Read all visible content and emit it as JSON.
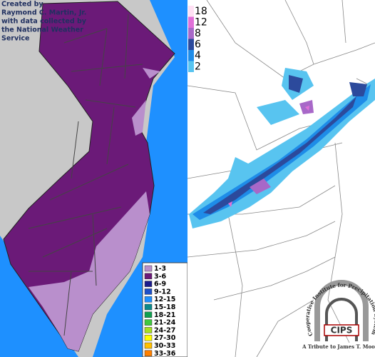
{
  "credit": {
    "lines": [
      "Created by",
      "Raymond C. Martin, Jr.",
      "with data collected by",
      "the National Weather",
      "Service"
    ]
  },
  "legend": {
    "entries": [
      {
        "label": "1-3",
        "color": "#b98fcc"
      },
      {
        "label": "3-6",
        "color": "#6b1a78"
      },
      {
        "label": "6-9",
        "color": "#1c1c8c"
      },
      {
        "label": "9-12",
        "color": "#1e50c8"
      },
      {
        "label": "12-15",
        "color": "#1e90ff"
      },
      {
        "label": "15-18",
        "color": "#0a8a8a"
      },
      {
        "label": "18-21",
        "color": "#10a050"
      },
      {
        "label": "21-24",
        "color": "#40c840"
      },
      {
        "label": "24-27",
        "color": "#a8e020"
      },
      {
        "label": "27-30",
        "color": "#ffff00"
      },
      {
        "label": "30-33",
        "color": "#ffc000"
      },
      {
        "label": "33-36",
        "color": "#ff8000"
      }
    ]
  },
  "scale": {
    "entries": [
      {
        "label": "18",
        "color": "#ffe0f4"
      },
      {
        "label": "12",
        "color": "#e070d8"
      },
      {
        "label": "8",
        "color": "#a868c8"
      },
      {
        "label": "6",
        "color": "#2c4a9c"
      },
      {
        "label": "4",
        "color": "#1e8ce8"
      },
      {
        "label": "2",
        "color": "#58c4f0"
      }
    ]
  },
  "logo": {
    "title": "CIPS",
    "ring": "Cooperative Institute for Precipitation Systems",
    "tribute": "A Tribute to James T. Moore"
  }
}
